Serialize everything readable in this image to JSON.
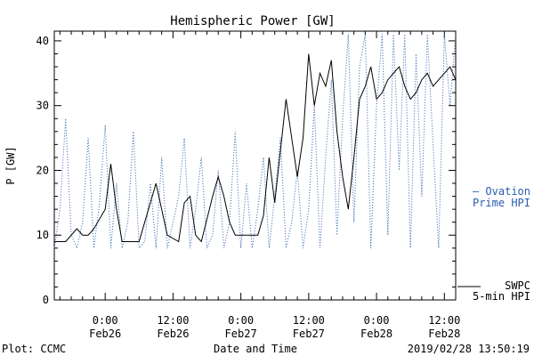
{
  "chart_data": {
    "type": "line",
    "title": "Hemispheric Power [GW]",
    "ylabel": "P [GW]",
    "xlabel": "Date and Time",
    "ylim": [
      0,
      41.5
    ],
    "xlim": [
      "2019-02-25T15:00",
      "2019-02-28T14:00"
    ],
    "grid": false,
    "yticks": [
      0,
      10,
      20,
      30,
      40
    ],
    "xticks": [
      {
        "x": "2019-02-26T00:00",
        "time": "0:00",
        "date": "Feb26"
      },
      {
        "x": "2019-02-26T12:00",
        "time": "12:00",
        "date": "Feb26"
      },
      {
        "x": "2019-02-27T00:00",
        "time": "0:00",
        "date": "Feb27"
      },
      {
        "x": "2019-02-27T12:00",
        "time": "12:00",
        "date": "Feb27"
      },
      {
        "x": "2019-02-28T00:00",
        "time": "0:00",
        "date": "Feb28"
      },
      {
        "x": "2019-02-28T12:00",
        "time": "12:00",
        "date": "Feb28"
      }
    ],
    "series": [
      {
        "name": "Ovation Prime HPI",
        "legend_lines": [
          "– Ovation",
          "Prime HPI"
        ],
        "color": "#2a5db0",
        "style": "dotted",
        "x": [
          "2019-02-25T15:00",
          "2019-02-25T16:00",
          "2019-02-25T17:00",
          "2019-02-25T18:00",
          "2019-02-25T19:00",
          "2019-02-25T20:00",
          "2019-02-25T21:00",
          "2019-02-25T22:00",
          "2019-02-25T23:00",
          "2019-02-26T00:00",
          "2019-02-26T01:00",
          "2019-02-26T02:00",
          "2019-02-26T03:00",
          "2019-02-26T04:00",
          "2019-02-26T05:00",
          "2019-02-26T06:00",
          "2019-02-26T07:00",
          "2019-02-26T08:00",
          "2019-02-26T09:00",
          "2019-02-26T10:00",
          "2019-02-26T11:00",
          "2019-02-26T12:00",
          "2019-02-26T13:00",
          "2019-02-26T14:00",
          "2019-02-26T15:00",
          "2019-02-26T16:00",
          "2019-02-26T17:00",
          "2019-02-26T18:00",
          "2019-02-26T19:00",
          "2019-02-26T20:00",
          "2019-02-26T21:00",
          "2019-02-26T22:00",
          "2019-02-26T23:00",
          "2019-02-27T00:00",
          "2019-02-27T01:00",
          "2019-02-27T02:00",
          "2019-02-27T03:00",
          "2019-02-27T04:00",
          "2019-02-27T05:00",
          "2019-02-27T06:00",
          "2019-02-27T07:00",
          "2019-02-27T08:00",
          "2019-02-27T09:00",
          "2019-02-27T10:00",
          "2019-02-27T11:00",
          "2019-02-27T12:00",
          "2019-02-27T13:00",
          "2019-02-27T14:00",
          "2019-02-27T15:00",
          "2019-02-27T16:00",
          "2019-02-27T17:00",
          "2019-02-27T18:00",
          "2019-02-27T19:00",
          "2019-02-27T20:00",
          "2019-02-27T21:00",
          "2019-02-27T22:00",
          "2019-02-27T23:00",
          "2019-02-28T00:00",
          "2019-02-28T01:00",
          "2019-02-28T02:00",
          "2019-02-28T03:00",
          "2019-02-28T04:00",
          "2019-02-28T05:00",
          "2019-02-28T06:00",
          "2019-02-28T07:00",
          "2019-02-28T08:00",
          "2019-02-28T09:00",
          "2019-02-28T10:00",
          "2019-02-28T11:00",
          "2019-02-28T12:00",
          "2019-02-28T13:00",
          "2019-02-28T14:00"
        ],
        "values": [
          8,
          14,
          28,
          10,
          8,
          12,
          25,
          8,
          15,
          27,
          8,
          18,
          8,
          12,
          26,
          8,
          9,
          18,
          8,
          22,
          8,
          12,
          16,
          25,
          8,
          14,
          22,
          8,
          10,
          20,
          8,
          12,
          26,
          8,
          18,
          8,
          14,
          22,
          8,
          16,
          25,
          8,
          12,
          20,
          8,
          14,
          30,
          8,
          22,
          34,
          10,
          28,
          41,
          12,
          36,
          41,
          8,
          30,
          41,
          10,
          41,
          20,
          41,
          8,
          38,
          16,
          41,
          24,
          8,
          41,
          30,
          41
        ]
      },
      {
        "name": "SWPC 5-min HPI",
        "legend_lines": [
          "SWPC",
          "5-min HPI"
        ],
        "color": "#000000",
        "style": "solid",
        "x": [
          "2019-02-25T15:00",
          "2019-02-25T17:00",
          "2019-02-25T19:00",
          "2019-02-25T20:00",
          "2019-02-25T21:00",
          "2019-02-25T22:00",
          "2019-02-26T00:00",
          "2019-02-26T01:00",
          "2019-02-26T02:00",
          "2019-02-26T03:00",
          "2019-02-26T04:00",
          "2019-02-26T05:00",
          "2019-02-26T06:00",
          "2019-02-26T07:00",
          "2019-02-26T09:00",
          "2019-02-26T11:00",
          "2019-02-26T13:00",
          "2019-02-26T14:00",
          "2019-02-26T15:00",
          "2019-02-26T16:00",
          "2019-02-26T17:00",
          "2019-02-26T19:00",
          "2019-02-26T20:00",
          "2019-02-26T21:00",
          "2019-02-26T22:00",
          "2019-02-26T23:00",
          "2019-02-27T00:00",
          "2019-02-27T01:00",
          "2019-02-27T02:00",
          "2019-02-27T03:00",
          "2019-02-27T04:00",
          "2019-02-27T05:00",
          "2019-02-27T06:00",
          "2019-02-27T08:00",
          "2019-02-27T10:00",
          "2019-02-27T11:00",
          "2019-02-27T12:00",
          "2019-02-27T13:00",
          "2019-02-27T14:00",
          "2019-02-27T15:00",
          "2019-02-27T16:00",
          "2019-02-27T17:00",
          "2019-02-27T18:00",
          "2019-02-27T19:00",
          "2019-02-27T20:00",
          "2019-02-27T21:00",
          "2019-02-27T22:00",
          "2019-02-27T23:00",
          "2019-02-28T00:00",
          "2019-02-28T01:00",
          "2019-02-28T02:00",
          "2019-02-28T03:00",
          "2019-02-28T04:00",
          "2019-02-28T05:00",
          "2019-02-28T06:00",
          "2019-02-28T07:00",
          "2019-02-28T08:00",
          "2019-02-28T09:00",
          "2019-02-28T10:00",
          "2019-02-28T11:00",
          "2019-02-28T12:00",
          "2019-02-28T13:00",
          "2019-02-28T14:00"
        ],
        "values": [
          9,
          9,
          11,
          10,
          10,
          11,
          14,
          21,
          14,
          9,
          9,
          9,
          9,
          12,
          18,
          10,
          9,
          15,
          16,
          10,
          9,
          16,
          19,
          16,
          12,
          10,
          10,
          10,
          10,
          10,
          13,
          22,
          15,
          31,
          19,
          25,
          38,
          30,
          35,
          33,
          37,
          26,
          19,
          14,
          22,
          31,
          33,
          36,
          31,
          32,
          34,
          35,
          36,
          33,
          31,
          32,
          34,
          35,
          33,
          34,
          35,
          36,
          34
        ]
      }
    ]
  },
  "footer": {
    "plot_credit": "Plot: CCMC",
    "timestamp": "2019/02/28 13:50:19"
  }
}
